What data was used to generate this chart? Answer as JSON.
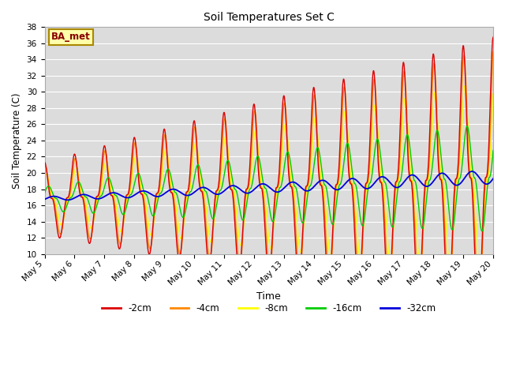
{
  "title": "Soil Temperatures Set C",
  "xlabel": "Time",
  "ylabel": "Soil Temperature (C)",
  "ylim": [
    10,
    38
  ],
  "yticks": [
    10,
    12,
    14,
    16,
    18,
    20,
    22,
    24,
    26,
    28,
    30,
    32,
    34,
    36,
    38
  ],
  "bg_color": "#dcdcdc",
  "plot_bg_color": "#dcdcdc",
  "fig_bg_color": "#ffffff",
  "legend_labels": [
    "-2cm",
    "-4cm",
    "-8cm",
    "-16cm",
    "-32cm"
  ],
  "legend_colors": [
    "#dd0000",
    "#ff8800",
    "#ffff00",
    "#00cc00",
    "#0000dd"
  ],
  "annotation_text": "BA_met",
  "annotation_color": "#880000",
  "annotation_bg": "#ffffaa",
  "annotation_border": "#aa8800",
  "n_points": 1440,
  "x_start": 5.0,
  "x_end": 20.0,
  "xtick_positions": [
    5,
    6,
    7,
    8,
    9,
    10,
    11,
    12,
    13,
    14,
    15,
    16,
    17,
    18,
    19,
    20
  ],
  "xtick_labels": [
    "May 5",
    "May 6",
    "May 7",
    "May 8",
    "May 9",
    "May 10",
    "May 11",
    "May 12",
    "May 13",
    "May 14",
    "May 15",
    "May 16",
    "May 17",
    "May 18",
    "May 19",
    "May 20"
  ]
}
